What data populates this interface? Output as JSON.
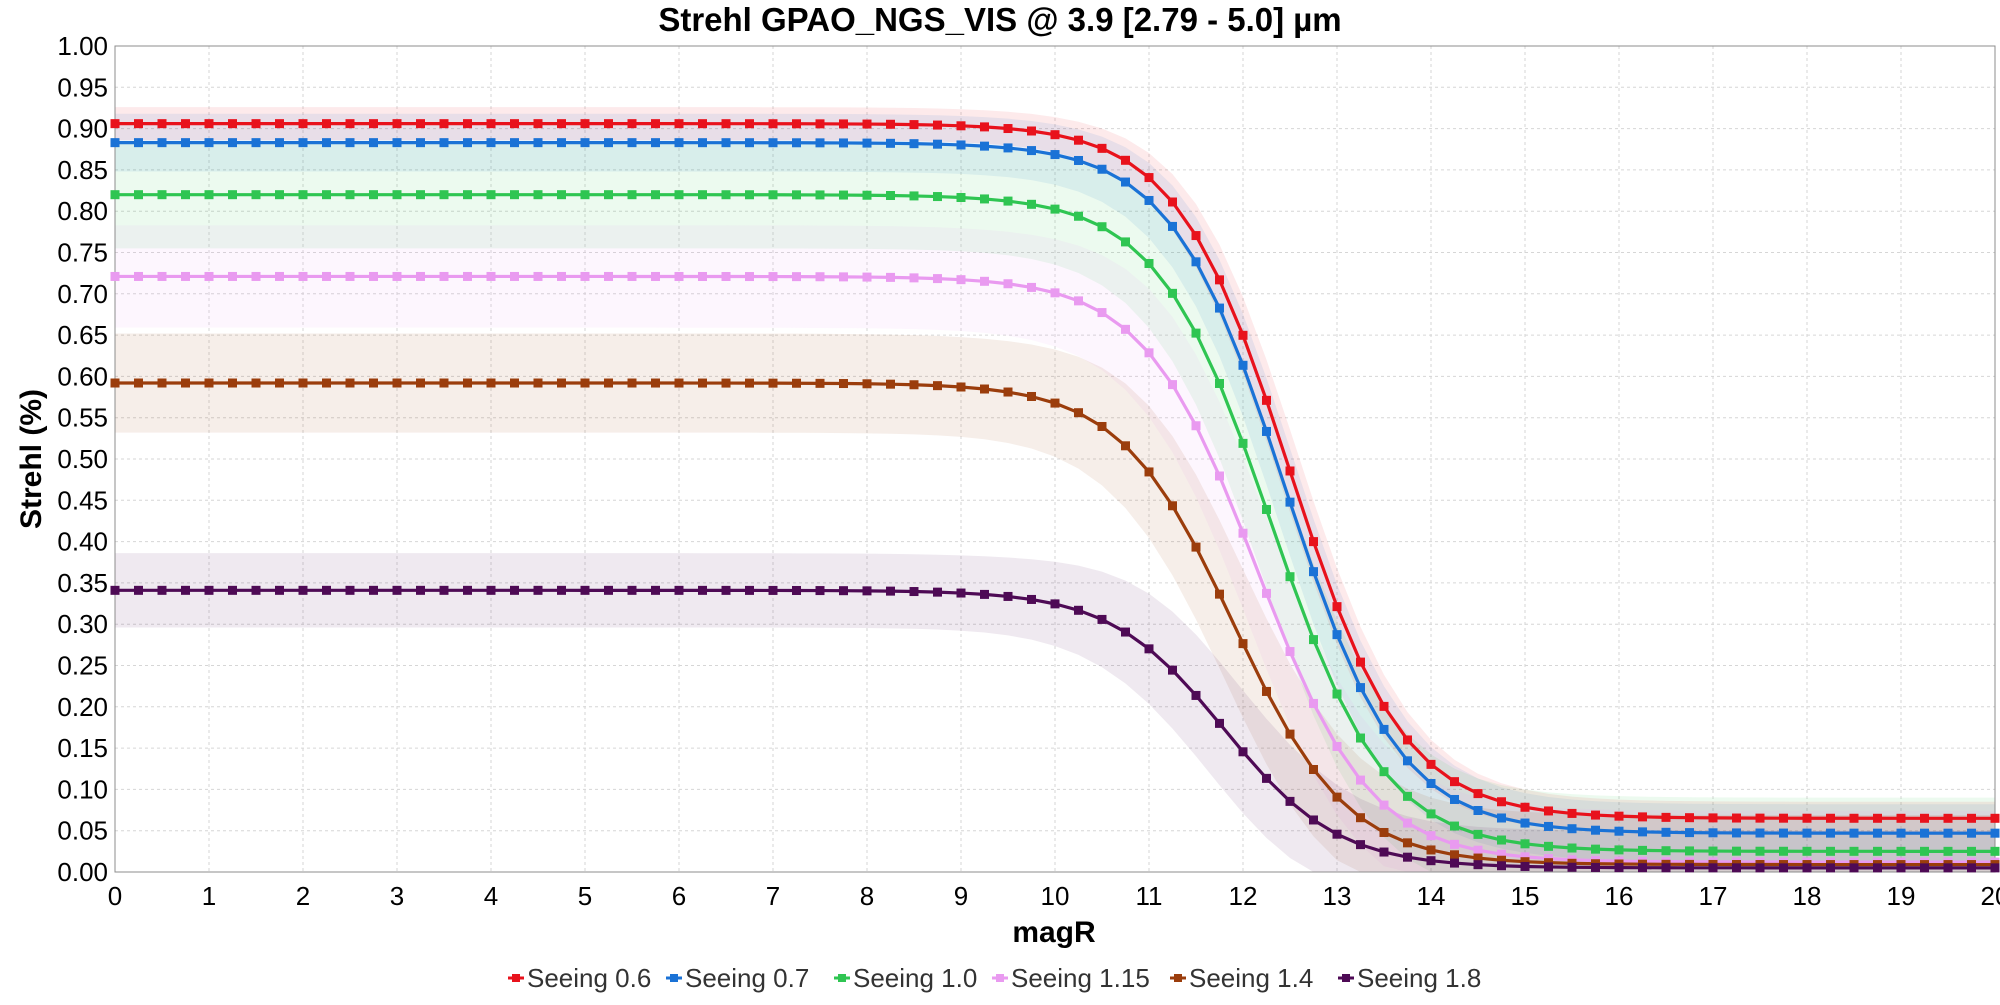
{
  "chart_data": {
    "type": "line",
    "title": "Strehl GPAO_NGS_VIS @ 3.9 [2.79 - 5.0] µm",
    "xlabel": "magR",
    "ylabel": "Strehl (%)",
    "xlim": [
      0,
      20
    ],
    "ylim": [
      0,
      1.0
    ],
    "xticks": [
      "0",
      "1",
      "2",
      "3",
      "4",
      "5",
      "6",
      "7",
      "8",
      "9",
      "10",
      "11",
      "12",
      "13",
      "14",
      "15",
      "16",
      "17",
      "18",
      "19",
      "20"
    ],
    "yticks": [
      "0.00",
      "0.05",
      "0.10",
      "0.15",
      "0.20",
      "0.25",
      "0.30",
      "0.35",
      "0.40",
      "0.45",
      "0.50",
      "0.55",
      "0.60",
      "0.65",
      "0.70",
      "0.75",
      "0.80",
      "0.85",
      "0.90",
      "0.95",
      "1.00"
    ],
    "grid": true,
    "legend_position": "bottom",
    "x": [
      0,
      0.25,
      0.5,
      0.75,
      1,
      1.25,
      1.5,
      1.75,
      2,
      2.25,
      2.5,
      2.75,
      3,
      3.25,
      3.5,
      3.75,
      4,
      4.25,
      4.5,
      4.75,
      5,
      5.25,
      5.5,
      5.75,
      6,
      6.25,
      6.5,
      6.75,
      7,
      7.25,
      7.5,
      7.75,
      8,
      8.25,
      8.5,
      8.75,
      9,
      9.25,
      9.5,
      9.75,
      10,
      10.25,
      10.5,
      10.75,
      11,
      11.25,
      11.5,
      11.75,
      12,
      12.25,
      12.5,
      12.75,
      13,
      13.25,
      13.5,
      13.75,
      14,
      14.25,
      14.5,
      14.75,
      15,
      15.25,
      15.5,
      15.75,
      16,
      16.25,
      16.5,
      16.75,
      17,
      17.25,
      17.5,
      17.75,
      18,
      18.25,
      18.5,
      18.75,
      19,
      19.25,
      19.5,
      19.75,
      20
    ],
    "series": [
      {
        "name": "Seeing 0.6",
        "color": "#e8121c",
        "plateau": 0.906,
        "floor": 0.065,
        "x0": 12.5,
        "k": 1.65,
        "band": 0.02
      },
      {
        "name": "Seeing 0.7",
        "color": "#1a72d6",
        "plateau": 0.883,
        "floor": 0.047,
        "x0": 12.45,
        "k": 1.65,
        "band": 0.035
      },
      {
        "name": "Seeing 1.0",
        "color": "#2fc552",
        "plateau": 0.82,
        "floor": 0.025,
        "x0": 12.3,
        "k": 1.65,
        "band": 0.065
      },
      {
        "name": "Seeing 1.15",
        "color": "#e99af0",
        "plateau": 0.721,
        "floor": 0.012,
        "x0": 12.15,
        "k": 1.65,
        "band": 0.062
      },
      {
        "name": "Seeing 1.4",
        "color": "#9b3d0c",
        "plateau": 0.592,
        "floor": 0.009,
        "x0": 11.9,
        "k": 1.65,
        "band": 0.06
      },
      {
        "name": "Seeing 1.8",
        "color": "#4e0a55",
        "plateau": 0.341,
        "floor": 0.005,
        "x0": 11.8,
        "k": 1.65,
        "band": 0.045
      }
    ]
  }
}
